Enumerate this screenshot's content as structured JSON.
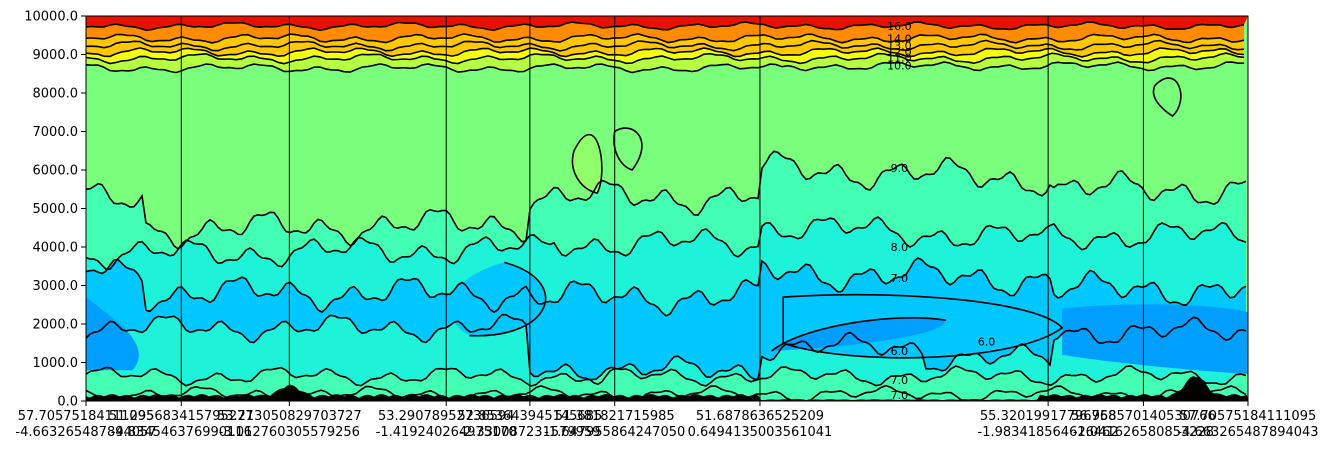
{
  "chart_data": {
    "type": "contour",
    "ylim": [
      0,
      10000
    ],
    "y_ticks": [
      "0.0",
      "1000.0",
      "2000.0",
      "3000.0",
      "4000.0",
      "5000.0",
      "6000.0",
      "7000.0",
      "8000.0",
      "9000.0",
      "10000.0"
    ],
    "y_tick_values": [
      0,
      1000,
      2000,
      3000,
      4000,
      5000,
      6000,
      7000,
      8000,
      9000,
      10000
    ],
    "x_ticks": [
      {
        "fraction": 0.0,
        "lines": [
          "57.70575184111095",
          "-4.663265487894057"
        ]
      },
      {
        "fraction": 0.082,
        "lines": [
          "51.295683415795277",
          "-4.834546376990116"
        ]
      },
      {
        "fraction": 0.175,
        "lines": [
          "53.213050829703727",
          "-3.012760305579256"
        ]
      },
      {
        "fraction": 0.31,
        "lines": [
          "53.29078952736594",
          "-1.419240264975170"
        ]
      },
      {
        "fraction": 0.382,
        "lines": [
          "52.853643945145685",
          "-2.330087231579959"
        ]
      },
      {
        "fraction": 0.455,
        "lines": [
          "51.381821715985",
          "-1.647955864247050"
        ]
      },
      {
        "fraction": 0.58,
        "lines": [
          "51.6878636525209",
          "0.6494135003561041"
        ]
      },
      {
        "fraction": 0.828,
        "lines": [
          "55.32019917796768",
          "-1.983418564616462"
        ]
      },
      {
        "fraction": 0.91,
        "lines": [
          "56.958570140530766",
          "-2.041626580853228"
        ]
      },
      {
        "fraction": 1.0,
        "lines": [
          "57.70575184111095",
          "-4.663265487894043"
        ]
      }
    ],
    "section_dividers": [
      0.082,
      0.175,
      0.31,
      0.382,
      0.455,
      0.58,
      0.828,
      0.91
    ],
    "contour_levels": [
      5.0,
      5.5,
      6.0,
      6.5,
      7.0,
      7.5,
      8.0,
      8.5,
      9.0,
      9.5,
      10.0,
      10.5,
      11.0,
      11.5,
      12.0,
      12.5,
      13.0,
      13.5,
      14.0,
      14.5,
      15.0,
      15.5,
      16.0,
      16.5,
      17.0
    ],
    "contour_labels": [
      {
        "text": "16.0",
        "x_frac": 0.7,
        "y": 9740
      },
      {
        "text": "14.0",
        "x_frac": 0.7,
        "y": 9420
      },
      {
        "text": "13.0",
        "x_frac": 0.7,
        "y": 9230
      },
      {
        "text": "12.0",
        "x_frac": 0.7,
        "y": 9070
      },
      {
        "text": "11.0",
        "x_frac": 0.7,
        "y": 8920
      },
      {
        "text": "10.0",
        "x_frac": 0.7,
        "y": 8720
      },
      {
        "text": "9.0",
        "x_frac": 0.7,
        "y": 6050
      },
      {
        "text": "8.0",
        "x_frac": 0.7,
        "y": 4000
      },
      {
        "text": "7.0",
        "x_frac": 0.7,
        "y": 3200
      },
      {
        "text": "6.0",
        "x_frac": 0.7,
        "y": 1300
      },
      {
        "text": "6.0",
        "x_frac": 0.775,
        "y": 1550
      },
      {
        "text": "7.0",
        "x_frac": 0.7,
        "y": 550
      },
      {
        "text": "7.0",
        "x_frac": 0.7,
        "y": 150
      }
    ],
    "colormap": "jet",
    "colors": {
      "band_low": "#009fff",
      "band_mid_low": "#00c8ff",
      "band_mid": "#1ef2d9",
      "band_mid_high": "#43ffb3",
      "band_high": "#79ff7c",
      "band_yellow": "#f3ff0c",
      "band_orange": "#ff8c00",
      "band_red": "#e81000",
      "terrain": "#000000",
      "contour_line": "#000000"
    }
  }
}
